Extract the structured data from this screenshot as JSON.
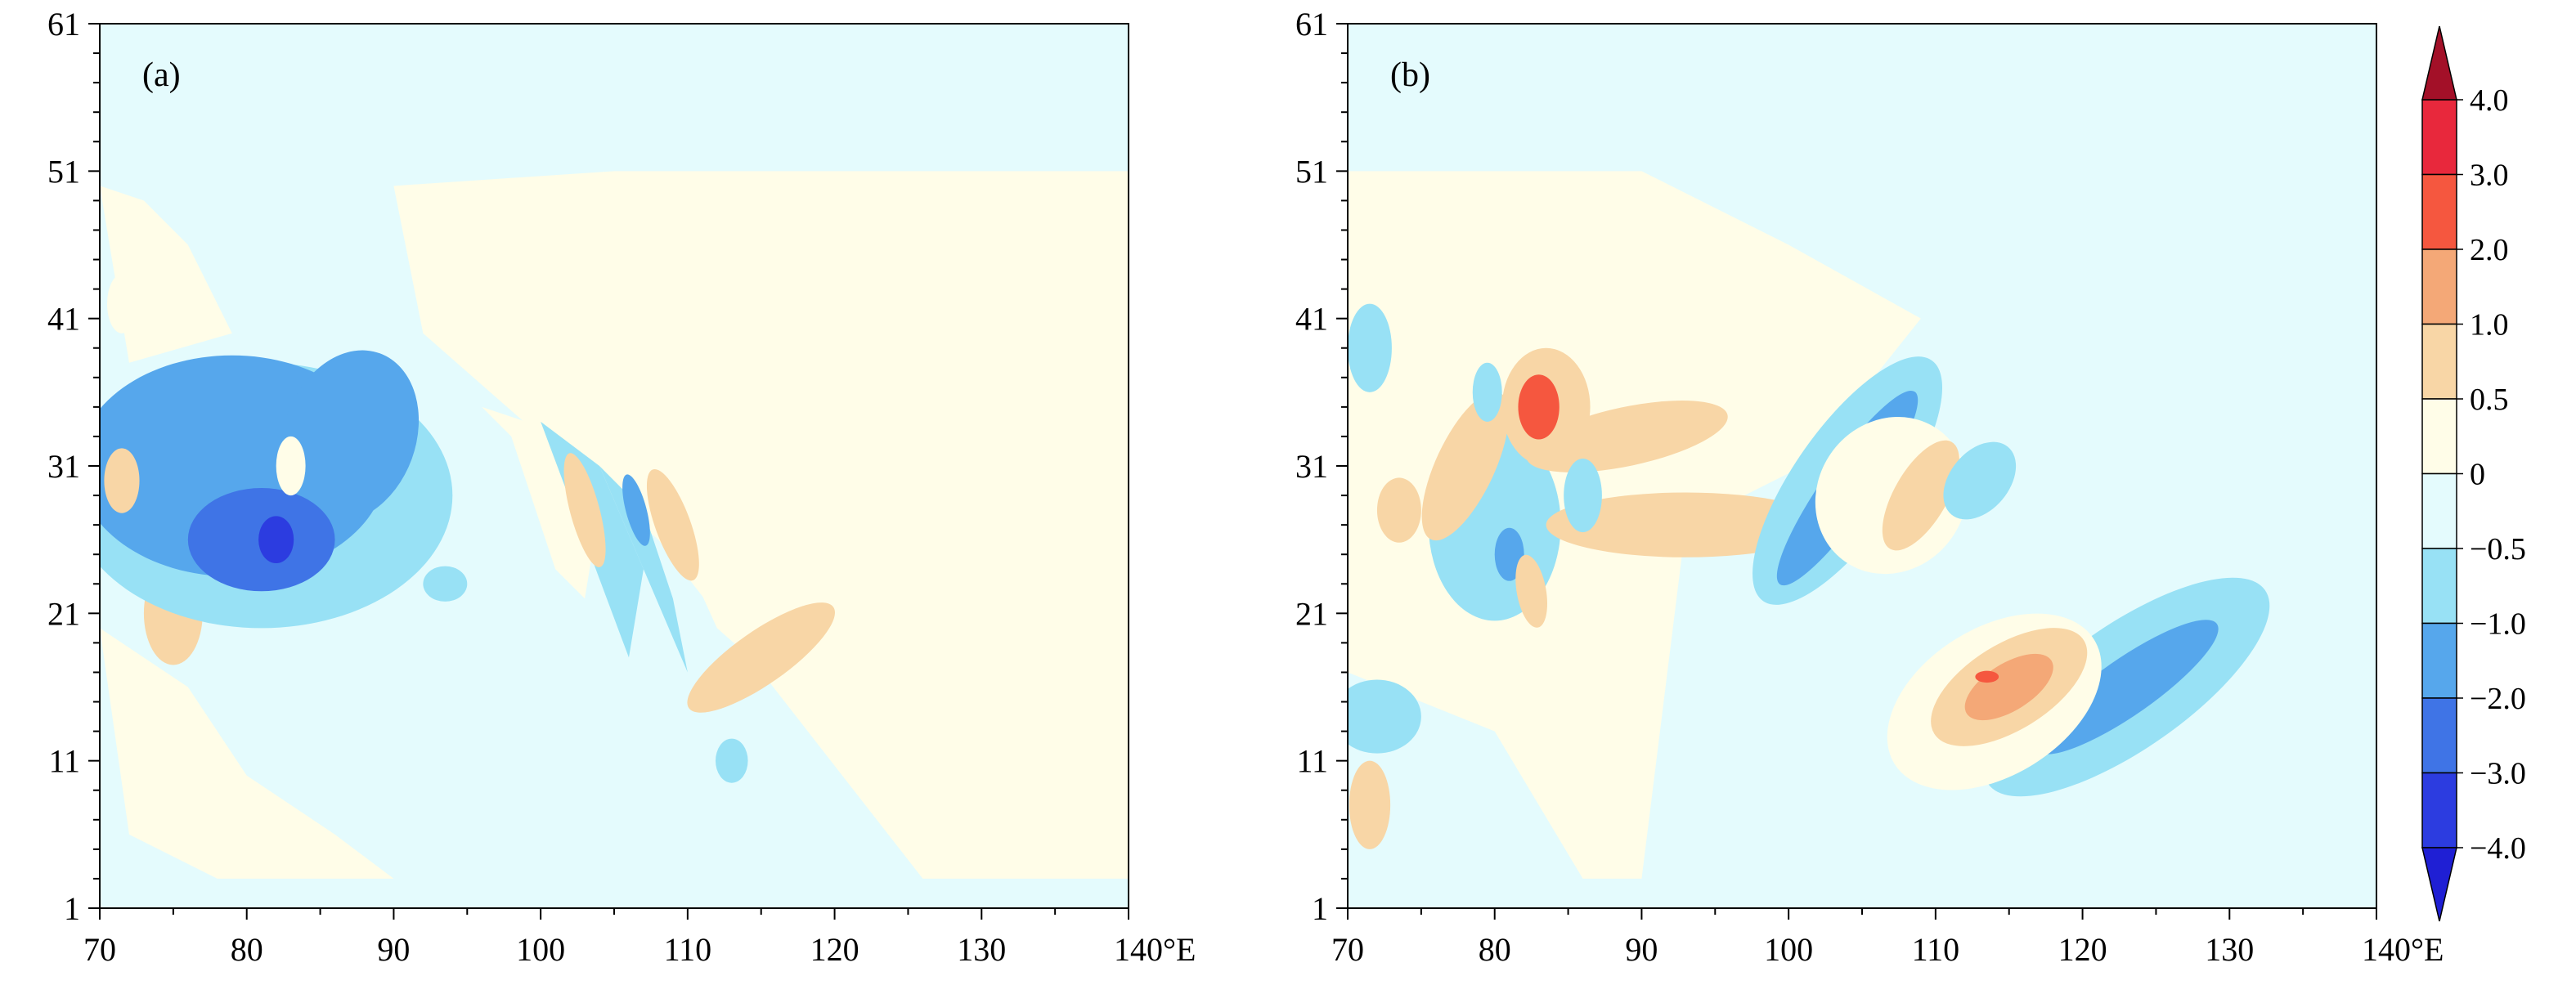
{
  "chart_data": [
    {
      "type": "heatmap",
      "panel_label": "(a)",
      "x_ticks": [
        "70",
        "80",
        "90",
        "100",
        "110",
        "120",
        "130",
        "140°E"
      ],
      "y_ticks": [
        "1",
        "11",
        "21",
        "31",
        "41",
        "51",
        "61"
      ],
      "xlim": [
        70,
        140
      ],
      "ylim": [
        1,
        61
      ],
      "background_value": -0.25,
      "features": [
        {
          "kind": "band",
          "x": [
            90,
            105,
            122,
            140,
            140,
            126,
            108,
            92
          ],
          "y": [
            50,
            51,
            51,
            51,
            3,
            3,
            26,
            40
          ],
          "value": 0.25
        },
        {
          "kind": "band",
          "x": [
            70,
            73,
            76,
            79,
            72
          ],
          "y": [
            50,
            49,
            46,
            40,
            38
          ],
          "value": 0.25
        },
        {
          "kind": "band",
          "x": [
            70,
            76,
            80,
            86,
            90,
            85,
            78,
            72
          ],
          "y": [
            20,
            16,
            10,
            6,
            3,
            3,
            3,
            6
          ],
          "value": 0.25
        },
        {
          "kind": "blob",
          "cx": 75,
          "cy": 21,
          "rx": 2.0,
          "ry": 3.5,
          "rot": 0,
          "value": 0.75
        },
        {
          "kind": "blob",
          "cx": 71.5,
          "cy": 42,
          "rx": 1.0,
          "ry": 2.0,
          "rot": 0,
          "value": 0.25
        },
        {
          "kind": "blob",
          "cx": 81,
          "cy": 29,
          "rx": 13,
          "ry": 9,
          "rot": 0,
          "value": -0.75
        },
        {
          "kind": "blob",
          "cx": 79,
          "cy": 31,
          "rx": 10.5,
          "ry": 7.5,
          "rot": 0,
          "value": -1.5
        },
        {
          "kind": "blob",
          "cx": 87,
          "cy": 33,
          "rx": 4.5,
          "ry": 6,
          "rot": 20,
          "value": -1.5
        },
        {
          "kind": "blob",
          "cx": 81,
          "cy": 26,
          "rx": 5,
          "ry": 3.5,
          "rot": 0,
          "value": -2.5
        },
        {
          "kind": "blob",
          "cx": 82,
          "cy": 26,
          "rx": 1.2,
          "ry": 1.6,
          "rot": 0,
          "value": -3.5
        },
        {
          "kind": "blob",
          "cx": 83,
          "cy": 31,
          "rx": 1.0,
          "ry": 2.0,
          "rot": 0,
          "value": 0.25
        },
        {
          "kind": "blob",
          "cx": 71.5,
          "cy": 30,
          "rx": 1.2,
          "ry": 2.2,
          "rot": 0,
          "value": 0.75
        },
        {
          "kind": "band",
          "x": [
            96,
            102,
            104,
            103,
            101,
            98
          ],
          "y": [
            35,
            33,
            28,
            22,
            24,
            33
          ],
          "value": 0.25
        },
        {
          "kind": "band",
          "x": [
            100,
            104,
            107,
            106,
            103
          ],
          "y": [
            34,
            31,
            24,
            18,
            26
          ],
          "value": -0.75
        },
        {
          "kind": "blob",
          "cx": 103,
          "cy": 28,
          "rx": 1.0,
          "ry": 4.0,
          "rot": -15,
          "value": 0.75
        },
        {
          "kind": "band",
          "x": [
            104,
            107,
            109,
            110,
            107
          ],
          "y": [
            31,
            28,
            22,
            17,
            24
          ],
          "value": -0.75
        },
        {
          "kind": "blob",
          "cx": 106.5,
          "cy": 28,
          "rx": 0.7,
          "ry": 2.5,
          "rot": -15,
          "value": -1.5
        },
        {
          "kind": "band",
          "x": [
            107,
            111,
            118,
            122,
            120,
            112
          ],
          "y": [
            31,
            25,
            20,
            16,
            13,
            20
          ],
          "value": 0.25
        },
        {
          "kind": "blob",
          "cx": 109,
          "cy": 27,
          "rx": 1.2,
          "ry": 4.0,
          "rot": -20,
          "value": 0.75
        },
        {
          "kind": "blob",
          "cx": 115,
          "cy": 18,
          "rx": 6,
          "ry": 1.8,
          "rot": -35,
          "value": 0.75
        },
        {
          "kind": "blob",
          "cx": 93.5,
          "cy": 23,
          "rx": 1.5,
          "ry": 1.2,
          "rot": 0,
          "value": -0.75
        },
        {
          "kind": "blob",
          "cx": 113,
          "cy": 11,
          "rx": 1.1,
          "ry": 1.5,
          "rot": 0,
          "value": -0.75
        }
      ]
    },
    {
      "type": "heatmap",
      "panel_label": "(b)",
      "x_ticks": [
        "70",
        "80",
        "90",
        "100",
        "110",
        "120",
        "130",
        "140°E"
      ],
      "y_ticks": [
        "1",
        "11",
        "21",
        "31",
        "41",
        "51",
        "61"
      ],
      "xlim": [
        70,
        140
      ],
      "ylim": [
        1,
        61
      ],
      "background_value": -0.25,
      "features": [
        {
          "kind": "band",
          "x": [
            70,
            90,
            100,
            109,
            101,
            93,
            90,
            86,
            80,
            70
          ],
          "y": [
            51,
            51,
            46,
            41,
            31,
            27,
            3,
            3,
            13,
            17
          ],
          "value": 0.25
        },
        {
          "kind": "blob",
          "cx": 80,
          "cy": 27,
          "rx": 4.5,
          "ry": 6.5,
          "rot": 0,
          "value": -0.75
        },
        {
          "kind": "blob",
          "cx": 81,
          "cy": 25,
          "rx": 1.0,
          "ry": 1.8,
          "rot": 0,
          "value": -1.5
        },
        {
          "kind": "blob",
          "cx": 72,
          "cy": 14,
          "rx": 3,
          "ry": 2.5,
          "rot": 0,
          "value": -0.75
        },
        {
          "kind": "blob",
          "cx": 71.5,
          "cy": 39,
          "rx": 1.5,
          "ry": 3,
          "rot": 0,
          "value": -0.75
        },
        {
          "kind": "blob",
          "cx": 71.5,
          "cy": 8,
          "rx": 1.4,
          "ry": 3,
          "rot": 0,
          "value": 0.75
        },
        {
          "kind": "blob",
          "cx": 73.5,
          "cy": 28,
          "rx": 1.5,
          "ry": 2.2,
          "rot": 0,
          "value": 0.75
        },
        {
          "kind": "blob",
          "cx": 78,
          "cy": 31,
          "rx": 2.0,
          "ry": 5.5,
          "rot": 25,
          "value": 0.75
        },
        {
          "kind": "blob",
          "cx": 83.5,
          "cy": 35,
          "rx": 3.0,
          "ry": 4.0,
          "rot": 0,
          "value": 0.75
        },
        {
          "kind": "blob",
          "cx": 89,
          "cy": 33,
          "rx": 7,
          "ry": 2.0,
          "rot": -12,
          "value": 0.75
        },
        {
          "kind": "blob",
          "cx": 83,
          "cy": 35,
          "rx": 1.4,
          "ry": 2.2,
          "rot": 0,
          "value": 2.5
        },
        {
          "kind": "blob",
          "cx": 93,
          "cy": 27,
          "rx": 9.5,
          "ry": 2.2,
          "rot": 0,
          "value": 0.75
        },
        {
          "kind": "blob",
          "cx": 82.5,
          "cy": 22.5,
          "rx": 1.0,
          "ry": 2.5,
          "rot": -10,
          "value": 0.75
        },
        {
          "kind": "blob",
          "cx": 79.5,
          "cy": 36,
          "rx": 1.0,
          "ry": 2.0,
          "rot": 0,
          "value": -0.75
        },
        {
          "kind": "blob",
          "cx": 86,
          "cy": 29,
          "rx": 1.3,
          "ry": 2.5,
          "rot": 0,
          "value": -0.75
        },
        {
          "kind": "blob",
          "cx": 104,
          "cy": 30,
          "rx": 10,
          "ry": 3.6,
          "rot": -55,
          "value": -0.75
        },
        {
          "kind": "blob",
          "cx": 104,
          "cy": 29.5,
          "rx": 8,
          "ry": 1.7,
          "rot": -55,
          "value": -1.5
        },
        {
          "kind": "blob",
          "cx": 107,
          "cy": 29,
          "rx": 5.5,
          "ry": 5,
          "rot": -55,
          "value": 0.25
        },
        {
          "kind": "blob",
          "cx": 109,
          "cy": 29,
          "rx": 4.2,
          "ry": 1.8,
          "rot": -60,
          "value": 0.75
        },
        {
          "kind": "blob",
          "cx": 113,
          "cy": 30,
          "rx": 3,
          "ry": 2,
          "rot": -50,
          "value": -0.75
        },
        {
          "kind": "blob",
          "cx": 123,
          "cy": 16,
          "rx": 11.5,
          "ry": 4.2,
          "rot": -35,
          "value": -0.75
        },
        {
          "kind": "blob",
          "cx": 123,
          "cy": 16,
          "rx": 7.5,
          "ry": 1.9,
          "rot": -35,
          "value": -1.5
        },
        {
          "kind": "blob",
          "cx": 114,
          "cy": 15,
          "rx": 8,
          "ry": 5,
          "rot": -32,
          "value": 0.25
        },
        {
          "kind": "blob",
          "cx": 115,
          "cy": 16,
          "rx": 6,
          "ry": 2.9,
          "rot": -32,
          "value": 0.75
        },
        {
          "kind": "blob",
          "cx": 115,
          "cy": 16,
          "rx": 3.4,
          "ry": 1.6,
          "rot": -32,
          "value": 1.5
        },
        {
          "kind": "blob",
          "cx": 113.5,
          "cy": 16.7,
          "rx": 0.8,
          "ry": 0.4,
          "rot": 0,
          "value": 2.5
        }
      ]
    }
  ],
  "colorbar": {
    "tick_labels": [
      "4.0",
      "3.0",
      "2.0",
      "1.0",
      "0.5",
      "0",
      "−0.5",
      "−1.0",
      "−2.0",
      "−3.0",
      "−4.0"
    ],
    "levels": [
      {
        "min": 3.0,
        "max": 4.0,
        "color": "#e8283c"
      },
      {
        "min": 2.0,
        "max": 3.0,
        "color": "#f5573f"
      },
      {
        "min": 1.0,
        "max": 2.0,
        "color": "#f4a877"
      },
      {
        "min": 0.5,
        "max": 1.0,
        "color": "#f8d6a6"
      },
      {
        "min": 0.0,
        "max": 0.5,
        "color": "#fffde8"
      },
      {
        "min": -0.5,
        "max": 0.0,
        "color": "#e4fbfd"
      },
      {
        "min": -1.0,
        "max": -0.5,
        "color": "#98e1f5"
      },
      {
        "min": -2.0,
        "max": -1.0,
        "color": "#56a7ec"
      },
      {
        "min": -3.0,
        "max": -2.0,
        "color": "#3f74e6"
      },
      {
        "min": -4.0,
        "max": -3.0,
        "color": "#2c3ce0"
      }
    ],
    "over_color": "#a31028",
    "under_color": "#1f1fd4"
  }
}
